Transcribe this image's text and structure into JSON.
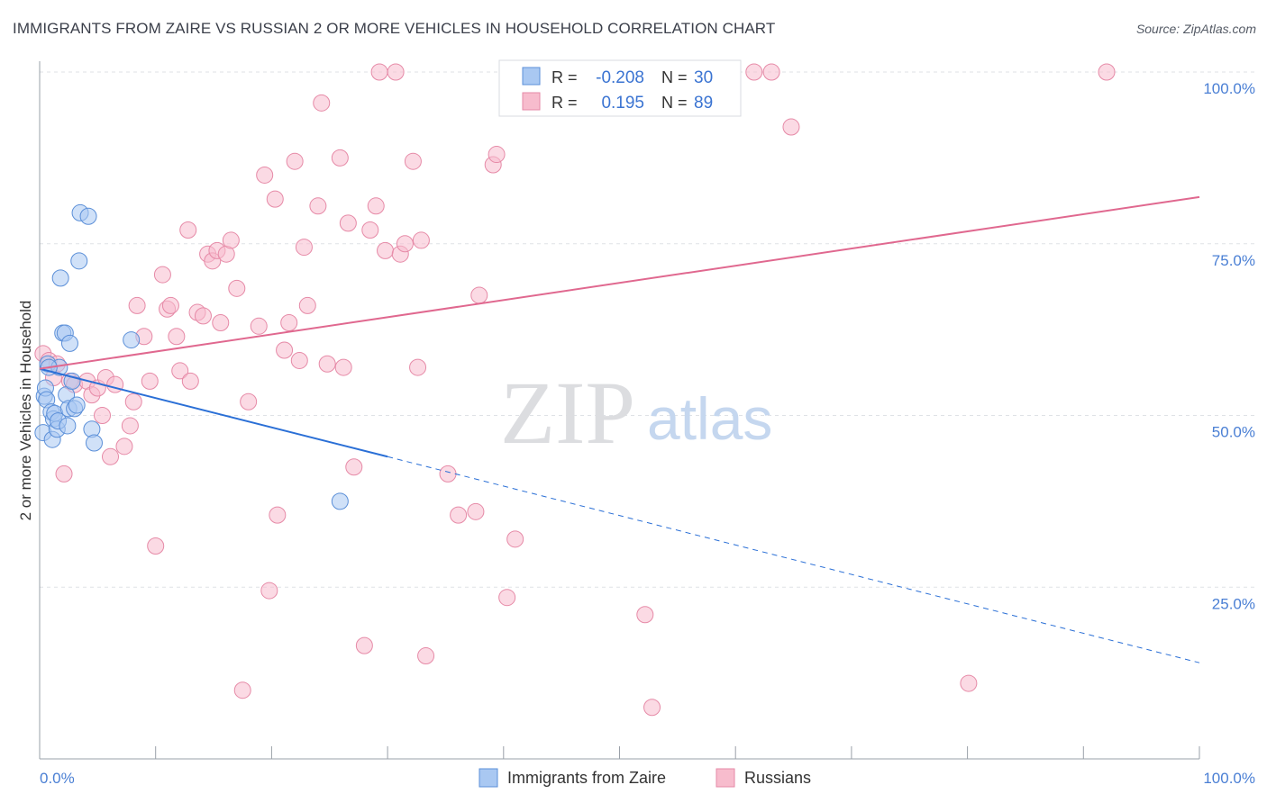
{
  "title": "IMMIGRANTS FROM ZAIRE VS RUSSIAN 2 OR MORE VEHICLES IN HOUSEHOLD CORRELATION CHART",
  "source": "Source: ZipAtlas.com",
  "watermark": {
    "zip": "ZIP",
    "atlas": "atlas"
  },
  "colors": {
    "blue": "#a9c8f2",
    "blue_stroke": "#5b8fd8",
    "blue_line": "#2a6fd6",
    "pink": "#f7bccd",
    "pink_stroke": "#e68aa7",
    "pink_line": "#e0688f"
  },
  "stats": {
    "blue": {
      "r_label": "R =",
      "r": "-0.208",
      "n_label": "N =",
      "n": "30"
    },
    "pink": {
      "r_label": "R =",
      "r": "0.195",
      "n_label": "N =",
      "n": "89"
    }
  },
  "chart_data": {
    "type": "scatter",
    "title": "IMMIGRANTS FROM ZAIRE VS RUSSIAN 2 OR MORE VEHICLES IN HOUSEHOLD CORRELATION CHART",
    "xlabel": "",
    "ylabel": "2 or more Vehicles in Household",
    "xlim": [
      0,
      100
    ],
    "ylim": [
      0,
      100
    ],
    "x_tick_labels": [
      "0.0%",
      "100.0%"
    ],
    "y_ticks": [
      25,
      50,
      75,
      100
    ],
    "y_tick_labels": [
      "25.0%",
      "50.0%",
      "75.0%",
      "100.0%"
    ],
    "grid": true,
    "legend_position": "bottom",
    "series": [
      {
        "name": "Immigrants from Zaire",
        "color": "#a9c8f2",
        "points": [
          [
            0.3,
            47.5
          ],
          [
            0.4,
            52.8
          ],
          [
            0.5,
            54.0
          ],
          [
            0.6,
            52.3
          ],
          [
            0.7,
            57.5
          ],
          [
            1.0,
            50.5
          ],
          [
            1.1,
            46.5
          ],
          [
            1.2,
            49.5
          ],
          [
            1.3,
            50.3
          ],
          [
            1.5,
            48.0
          ],
          [
            1.6,
            49.2
          ],
          [
            1.7,
            57.0
          ],
          [
            1.8,
            70.0
          ],
          [
            2.0,
            62.0
          ],
          [
            2.2,
            62.0
          ],
          [
            2.3,
            53.0
          ],
          [
            2.4,
            48.5
          ],
          [
            2.5,
            51.0
          ],
          [
            2.6,
            60.5
          ],
          [
            2.8,
            55.0
          ],
          [
            3.0,
            51.0
          ],
          [
            3.2,
            51.5
          ],
          [
            3.4,
            72.5
          ],
          [
            3.5,
            79.5
          ],
          [
            4.2,
            79.0
          ],
          [
            4.5,
            48.0
          ],
          [
            4.7,
            46.0
          ],
          [
            7.9,
            61.0
          ],
          [
            25.9,
            37.5
          ],
          [
            0.8,
            57.0
          ]
        ],
        "trend": {
          "x": [
            0,
            30
          ],
          "y": [
            56.8,
            44.0
          ]
        },
        "trend_extension": {
          "x": [
            30,
            100
          ],
          "y": [
            44.0,
            14.0
          ]
        }
      },
      {
        "name": "Russians",
        "color": "#f7bccd",
        "points": [
          [
            0.3,
            59.0
          ],
          [
            0.8,
            58.0
          ],
          [
            1.2,
            55.5
          ],
          [
            1.5,
            57.5
          ],
          [
            2.1,
            41.5
          ],
          [
            2.6,
            55.0
          ],
          [
            3.0,
            54.5
          ],
          [
            4.1,
            55.0
          ],
          [
            4.5,
            53.0
          ],
          [
            5.0,
            54.0
          ],
          [
            5.4,
            50.0
          ],
          [
            5.7,
            55.5
          ],
          [
            6.1,
            44.0
          ],
          [
            6.5,
            54.5
          ],
          [
            7.3,
            45.5
          ],
          [
            7.8,
            48.5
          ],
          [
            8.1,
            52.0
          ],
          [
            8.4,
            66.0
          ],
          [
            9.0,
            61.5
          ],
          [
            9.5,
            55.0
          ],
          [
            10.0,
            31.0
          ],
          [
            10.6,
            70.5
          ],
          [
            11.0,
            65.5
          ],
          [
            11.3,
            66.0
          ],
          [
            11.8,
            61.5
          ],
          [
            12.1,
            56.5
          ],
          [
            12.8,
            77.0
          ],
          [
            13.0,
            55.0
          ],
          [
            13.6,
            65.0
          ],
          [
            14.1,
            64.5
          ],
          [
            14.5,
            73.5
          ],
          [
            14.9,
            72.5
          ],
          [
            15.3,
            74.0
          ],
          [
            15.6,
            63.5
          ],
          [
            16.1,
            73.5
          ],
          [
            16.5,
            75.5
          ],
          [
            17.0,
            68.5
          ],
          [
            17.5,
            10.0
          ],
          [
            18.0,
            52.0
          ],
          [
            18.9,
            63.0
          ],
          [
            19.4,
            85.0
          ],
          [
            19.8,
            24.5
          ],
          [
            20.3,
            81.5
          ],
          [
            20.5,
            35.5
          ],
          [
            21.1,
            59.5
          ],
          [
            21.5,
            63.5
          ],
          [
            22.0,
            87.0
          ],
          [
            22.4,
            58.0
          ],
          [
            22.8,
            74.5
          ],
          [
            23.1,
            66.0
          ],
          [
            24.0,
            80.5
          ],
          [
            24.3,
            95.5
          ],
          [
            24.8,
            57.5
          ],
          [
            25.9,
            87.5
          ],
          [
            26.2,
            57.0
          ],
          [
            26.6,
            78.0
          ],
          [
            27.1,
            42.5
          ],
          [
            28.0,
            16.5
          ],
          [
            28.5,
            77.0
          ],
          [
            29.0,
            80.5
          ],
          [
            29.3,
            100.0
          ],
          [
            29.8,
            74.0
          ],
          [
            30.7,
            100.0
          ],
          [
            31.1,
            73.5
          ],
          [
            31.5,
            75.0
          ],
          [
            32.2,
            87.0
          ],
          [
            32.6,
            57.0
          ],
          [
            32.9,
            75.5
          ],
          [
            33.3,
            15.0
          ],
          [
            35.2,
            41.5
          ],
          [
            36.1,
            35.5
          ],
          [
            37.6,
            36.0
          ],
          [
            37.9,
            67.5
          ],
          [
            39.1,
            86.5
          ],
          [
            39.4,
            88.0
          ],
          [
            40.3,
            23.5
          ],
          [
            41.0,
            32.0
          ],
          [
            47.2,
            100.0
          ],
          [
            47.8,
            100.0
          ],
          [
            50.3,
            100.0
          ],
          [
            50.9,
            100.0
          ],
          [
            52.2,
            21.0
          ],
          [
            52.8,
            7.5
          ],
          [
            61.6,
            100.0
          ],
          [
            64.8,
            92.0
          ],
          [
            80.1,
            11.0
          ],
          [
            92.0,
            100.0
          ],
          [
            63.1,
            100.0
          ],
          [
            40.9,
            100.0
          ]
        ],
        "trend": {
          "x": [
            0,
            100
          ],
          "y": [
            56.8,
            81.8
          ]
        }
      }
    ]
  }
}
